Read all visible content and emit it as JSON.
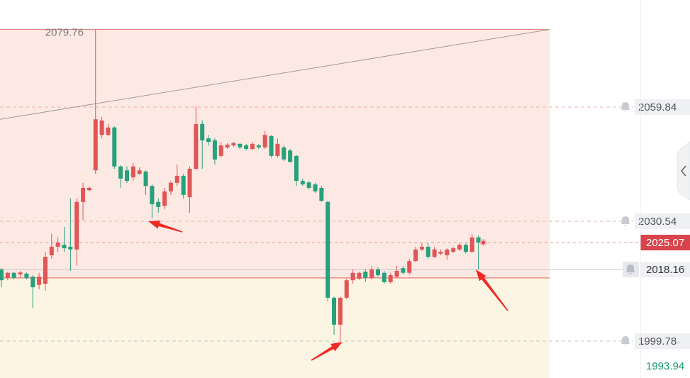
{
  "chart_data": {
    "type": "candlestick",
    "ylim": [
      1990.31,
      2087.32
    ],
    "up_color": "#e05656",
    "down_color": "#26a17b",
    "open": [
      2018.2,
      2016.0,
      2017.3,
      2016.9,
      2017.1,
      2016.3,
      2014.2,
      2014.5,
      2021.8,
      2024.0,
      2024.5,
      2024.0,
      2023.3,
      2035.5,
      2038.5,
      2043.6,
      2052.7,
      2052.7,
      2054.6,
      2044.6,
      2043.6,
      2041.8,
      2042.7,
      2043.3,
      2039.6,
      2035.5,
      2034.5,
      2038.2,
      2040.4,
      2042.2,
      2036.7,
      2044.0,
      2055.5,
      2051.8,
      2051.3,
      2047.3,
      2049.5,
      2050.0,
      2050.4,
      2050.0,
      2049.1,
      2050.0,
      2049.5,
      2052.4,
      2047.3,
      2049.5,
      2048.7,
      2047.3,
      2040.9,
      2040.5,
      2040.0,
      2039.1,
      2035.5,
      2010.9,
      2004.0,
      2010.9,
      2015.4,
      2015.8,
      2017.6,
      2016.0,
      2018.2,
      2017.3,
      2014.9,
      2016.3,
      2018.5,
      2017.3,
      2020.3,
      2023.3,
      2024.0,
      2021.4,
      2022.2,
      2021.8,
      2022.7,
      2023.3,
      2024.5,
      2022.7,
      2026.4
    ],
    "high": [
      2018.5,
      2017.6,
      2017.6,
      2017.8,
      2017.4,
      2016.7,
      2017.3,
      2022.7,
      2027.3,
      2026.4,
      2029.1,
      2036.4,
      2036.4,
      2040.4,
      2039.5,
      2079.76,
      2057.3,
      2055.5,
      2054.9,
      2044.9,
      2044.6,
      2045.5,
      2044.4,
      2043.6,
      2040.0,
      2036.4,
      2039.1,
      2040.9,
      2045.1,
      2042.7,
      2044.6,
      2060.0,
      2056.4,
      2052.7,
      2051.8,
      2050.9,
      2050.6,
      2050.9,
      2050.6,
      2050.4,
      2050.9,
      2050.4,
      2053.7,
      2052.7,
      2051.8,
      2050.0,
      2049.1,
      2047.6,
      2041.5,
      2040.9,
      2040.4,
      2039.6,
      2035.8,
      2011.2,
      2011.2,
      2015.8,
      2018.2,
      2017.6,
      2018.2,
      2019.1,
      2018.7,
      2017.8,
      2017.3,
      2019.1,
      2019.1,
      2020.9,
      2024.0,
      2024.9,
      2024.9,
      2024.0,
      2023.3,
      2023.6,
      2024.0,
      2024.9,
      2024.9,
      2027.3,
      2026.9
    ],
    "low": [
      2013.6,
      2015.4,
      2015.6,
      2016.3,
      2015.6,
      2008.2,
      2013.1,
      2012.7,
      2020.9,
      2022.7,
      2022.7,
      2017.8,
      2019.1,
      2030.9,
      2038.2,
      2042.7,
      2051.8,
      2052.4,
      2044.0,
      2039.1,
      2040.4,
      2040.9,
      2042.4,
      2037.3,
      2031.3,
      2032.7,
      2033.6,
      2037.3,
      2039.6,
      2036.4,
      2032.7,
      2043.6,
      2044.0,
      2050.0,
      2045.1,
      2046.9,
      2049.1,
      2049.6,
      2049.1,
      2048.7,
      2048.7,
      2049.1,
      2049.1,
      2046.9,
      2046.9,
      2046.0,
      2045.5,
      2039.6,
      2039.6,
      2038.7,
      2037.8,
      2035.5,
      2010.0,
      2001.4,
      1999.78,
      2010.5,
      2014.5,
      2015.4,
      2014.9,
      2015.6,
      2016.3,
      2014.5,
      2014.5,
      2016.0,
      2016.9,
      2016.9,
      2020.0,
      2022.9,
      2020.9,
      2021.1,
      2021.8,
      2020.7,
      2022.4,
      2022.9,
      2022.2,
      2022.4,
      2018.16
    ],
    "close": [
      2015.4,
      2017.3,
      2016.0,
      2017.4,
      2016.0,
      2013.6,
      2016.3,
      2021.4,
      2024.0,
      2025.1,
      2023.6,
      2023.3,
      2035.5,
      2039.1,
      2039.1,
      2056.7,
      2056.4,
      2054.6,
      2044.6,
      2041.5,
      2040.9,
      2044.6,
      2043.6,
      2039.6,
      2034.9,
      2034.2,
      2038.2,
      2040.4,
      2042.2,
      2037.3,
      2044.0,
      2055.5,
      2051.3,
      2050.9,
      2046.4,
      2050.0,
      2050.2,
      2050.6,
      2049.5,
      2049.1,
      2050.4,
      2049.5,
      2052.7,
      2047.3,
      2050.4,
      2046.4,
      2045.8,
      2040.9,
      2040.0,
      2039.1,
      2038.2,
      2035.8,
      2010.9,
      2004.0,
      2010.9,
      2015.4,
      2017.3,
      2017.3,
      2016.0,
      2018.2,
      2016.7,
      2014.9,
      2016.7,
      2017.8,
      2017.3,
      2020.3,
      2023.3,
      2024.0,
      2021.4,
      2023.3,
      2022.7,
      2023.3,
      2023.6,
      2024.5,
      2022.7,
      2026.4,
      2025.07
    ],
    "high_marker": 2079.76,
    "alert_levels": [
      2059.84,
      2030.54,
      1999.78
    ],
    "current_price": 2025.07,
    "position_level": 2018.16,
    "zone_boundary": 2016.0,
    "trendline": [
      2056.7,
      2079.76
    ],
    "bottom_price": 1993.94
  }
}
